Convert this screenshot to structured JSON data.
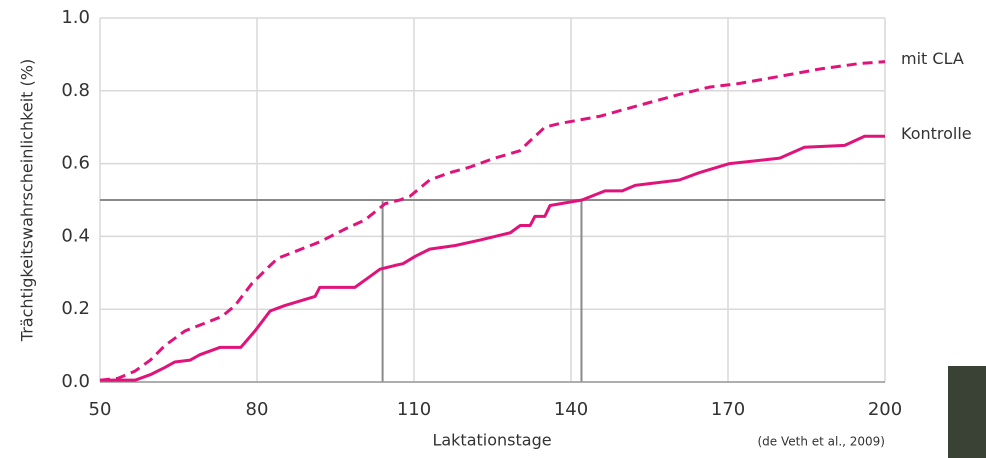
{
  "chart_data": {
    "type": "line",
    "y_label": "Trächtigkeitswahrscheinlichkeit (%)",
    "x_label": "Laktationstage",
    "source": "(de Veth et al., 2009)",
    "xlim": [
      50,
      200
    ],
    "xticks": [
      50,
      80,
      110,
      140,
      170,
      200
    ],
    "ylim": [
      0,
      1
    ],
    "yticks": [
      {
        "value": 0,
        "label": "0.0"
      },
      0.2,
      0.4,
      0.6,
      0.8,
      {
        "value": 1,
        "label": "1.0"
      }
    ],
    "grid": true,
    "reference_y": 0.5,
    "reference_x": [
      104,
      142
    ],
    "reference_color": "#8a8a8a",
    "series": [
      {
        "name": "mit CLA",
        "color": "#e0137b",
        "dash": true,
        "x": [
          50,
          53.4,
          56.7,
          59.6,
          62.4,
          66.2,
          73.3,
          75.8,
          79,
          82.5,
          84,
          92,
          96.8,
          100.6,
          104.5,
          107.3,
          109.2,
          113,
          116.8,
          120.6,
          125.4,
          130.2,
          132,
          135,
          137.8,
          145.5,
          153,
          160.7,
          166.4,
          172.1,
          180,
          187.6,
          195.2,
          200
        ],
        "values": [
          0.005,
          0.01,
          0.03,
          0.06,
          0.1,
          0.14,
          0.18,
          0.21,
          0.27,
          0.32,
          0.34,
          0.385,
          0.42,
          0.445,
          0.49,
          0.5,
          0.51,
          0.555,
          0.575,
          0.59,
          0.615,
          0.635,
          0.66,
          0.7,
          0.71,
          0.73,
          0.76,
          0.79,
          0.81,
          0.82,
          0.84,
          0.86,
          0.875,
          0.88
        ]
      },
      {
        "name": "Kontrolle",
        "color": "#e0137b",
        "dash": false,
        "x": [
          50,
          52.5,
          56.7,
          59.6,
          62.4,
          64.3,
          67.2,
          69.1,
          72.9,
          76.9,
          79.6,
          82.5,
          85.3,
          91.1,
          92,
          98.7,
          101.6,
          103.5,
          106.3,
          107.9,
          110.2,
          113,
          117.9,
          122.6,
          128.4,
          130.3,
          132.2,
          133.1,
          135,
          136,
          142.1,
          146.5,
          149.8,
          152.2,
          160.7,
          164.5,
          170.3,
          179.9,
          184.6,
          192.3,
          196.1,
          200
        ],
        "values": [
          0.005,
          0.005,
          0.005,
          0.02,
          0.04,
          0.055,
          0.06,
          0.075,
          0.095,
          0.095,
          0.14,
          0.195,
          0.21,
          0.235,
          0.26,
          0.26,
          0.29,
          0.31,
          0.32,
          0.325,
          0.345,
          0.365,
          0.375,
          0.39,
          0.41,
          0.43,
          0.43,
          0.455,
          0.455,
          0.485,
          0.5,
          0.525,
          0.525,
          0.54,
          0.555,
          0.575,
          0.6,
          0.615,
          0.645,
          0.65,
          0.675,
          0.675
        ]
      }
    ]
  }
}
